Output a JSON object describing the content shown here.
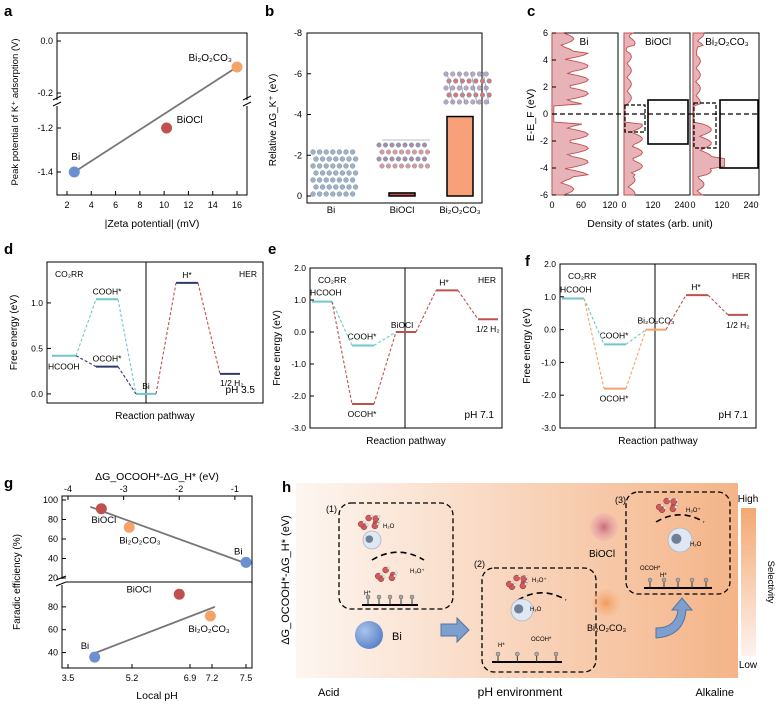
{
  "panels": {
    "a": {
      "letter": "a"
    },
    "b": {
      "letter": "b"
    },
    "c": {
      "letter": "c"
    },
    "d": {
      "letter": "d"
    },
    "e": {
      "letter": "e"
    },
    "f": {
      "letter": "f"
    },
    "g": {
      "letter": "g"
    },
    "h": {
      "letter": "h"
    }
  },
  "colors": {
    "bi": "#6b8fd0",
    "biocl": "#c0504d",
    "bi2o2co3": "#f5a36b",
    "fit": "#777777",
    "orange_bar": "#f7a07a",
    "teal": "#6fc7c9",
    "navy": "#2e3a6a",
    "red_dash": "#c0504d",
    "orange_dash": "#f5a36b",
    "grad_left": "#fdf6f1",
    "grad_right": "#f4b488"
  },
  "chart_data": [
    {
      "id": "a",
      "type": "scatter",
      "xlabel": "|Zeta potential| (mV)",
      "ylabel": "Peak potential of K⁺ adsorption (V)",
      "xticks": [
        "2",
        "4",
        "6",
        "8",
        "10",
        "12",
        "14",
        "16"
      ],
      "yticks_upper": [
        "0.0",
        "-0.2"
      ],
      "yticks_lower": [
        "-1.2",
        "-1.4"
      ],
      "points": [
        {
          "name": "Bi",
          "x": 2.6,
          "y": -1.4
        },
        {
          "name": "BiOCl",
          "x": 10.2,
          "y": -1.2
        },
        {
          "name": "Bi₂O₂CO₃",
          "x": 16.0,
          "y": -0.1
        }
      ]
    },
    {
      "id": "b",
      "type": "bar",
      "ylabel": "Relative ΔG_K⁺ (eV)",
      "categories": [
        "Bi",
        "BiOCl",
        "Bi₂O₂CO₃"
      ],
      "values": [
        0.0,
        -0.15,
        -3.9
      ],
      "yticks": [
        "-8",
        "-6",
        "-4",
        "-2",
        "0"
      ],
      "ylim": [
        0,
        -8
      ]
    },
    {
      "id": "c",
      "type": "area",
      "ylabel": "E-E_F (eV)",
      "xlabel": "Density of states (arb. unit)",
      "subplots": [
        {
          "name": "Bi",
          "xticks": [
            "0",
            "60",
            "120"
          ]
        },
        {
          "name": "BiOCl",
          "xticks": [
            "0",
            "120",
            "240"
          ]
        },
        {
          "name": "Bi₂O₂CO₃",
          "xticks": [
            "0",
            "120",
            "240"
          ]
        }
      ],
      "yticks": [
        "6",
        "4",
        "2",
        "0",
        "-2",
        "-4",
        "-6"
      ],
      "ylim": [
        -6,
        6
      ]
    },
    {
      "id": "d",
      "type": "line",
      "ylabel": "Free energy (eV)",
      "xlabel": "Reaction pathway",
      "ph": "pH 3.5",
      "yticks": [
        "0.0",
        "0.5",
        "1.0"
      ],
      "ylim": [
        -0.1,
        1.45
      ],
      "left_label": "CO₂RR",
      "right_label": "HER",
      "levels": [
        {
          "label": "COOH*",
          "value": 1.04,
          "color": "teal"
        },
        {
          "label": "OCOH*",
          "value": 0.3,
          "color": "navy"
        },
        {
          "label": "HCOOH",
          "value": 0.42,
          "color": "teal"
        },
        {
          "label": "Bi",
          "value": 0.0,
          "color": "navy"
        },
        {
          "label": "H*",
          "value": 1.22,
          "color": "navy"
        },
        {
          "label": "1/2 H₂",
          "value": 0.22,
          "color": "navy"
        }
      ]
    },
    {
      "id": "e",
      "type": "line",
      "ylabel": "Free energy (eV)",
      "xlabel": "Reaction pathway",
      "ph": "pH 7.1",
      "yticks": [
        "2.0",
        "1.0",
        "0.0",
        "-1.0",
        "-2.0",
        "-3.0"
      ],
      "ylim": [
        -3.0,
        2.0
      ],
      "left_label": "CO₂RR",
      "right_label": "HER",
      "levels": [
        {
          "label": "HCOOH",
          "value": 0.95
        },
        {
          "label": "COOH*",
          "value": -0.42
        },
        {
          "label": "OCOH*",
          "value": -2.25
        },
        {
          "label": "BiOCl",
          "value": 0.0
        },
        {
          "label": "H*",
          "value": 1.3
        },
        {
          "label": "1/2 H₂",
          "value": 0.4
        }
      ]
    },
    {
      "id": "f",
      "type": "line",
      "ylabel": "Free energy (eV)",
      "xlabel": "Reaction pathway",
      "ph": "pH 7.1",
      "yticks": [
        "2.0",
        "1.0",
        "0.0",
        "-1.0",
        "-2.0",
        "-3.0"
      ],
      "ylim": [
        -3.0,
        2.0
      ],
      "left_label": "CO₂RR",
      "right_label": "HER",
      "levels": [
        {
          "label": "HCOOH",
          "value": 0.95
        },
        {
          "label": "COOH*",
          "value": -0.45
        },
        {
          "label": "OCOH*",
          "value": -1.8
        },
        {
          "label": "Bi₂O₂CO₃",
          "value": 0.0
        },
        {
          "label": "H*",
          "value": 1.05
        },
        {
          "label": "1/2 H₂",
          "value": 0.45
        }
      ]
    },
    {
      "id": "g",
      "type": "scatter",
      "top_xlabel": "ΔG_OCOOH*-ΔG_H* (eV)",
      "xlabel": "Local pH",
      "ylabel": "Faradic efficiency (%)",
      "top_xticks": [
        "-4",
        "-3",
        "-2",
        "-1"
      ],
      "bottom_xticks": [
        "3.5",
        "5.2",
        "6.9",
        "7.2",
        "7.5"
      ],
      "yticks_top": [
        "100",
        "80",
        "60",
        "40",
        "20"
      ],
      "yticks_bottom": [
        "80",
        "60",
        "40"
      ],
      "top_points": [
        {
          "name": "BiOCl",
          "x": -3.4,
          "y": 91
        },
        {
          "name": "Bi₂O₂CO₃",
          "x": -2.9,
          "y": 72
        },
        {
          "name": "Bi",
          "x": -0.8,
          "y": 36
        }
      ],
      "bottom_points": [
        {
          "name": "Bi",
          "x": 4.1,
          "y": 36
        },
        {
          "name": "BiOCl",
          "x": 6.0,
          "y": 91
        },
        {
          "name": "Bi₂O₂CO₃",
          "x": 6.7,
          "y": 72
        }
      ]
    }
  ],
  "schematic": {
    "ylabel": "ΔG_OCOOH*-ΔG_H* (eV)",
    "x_left": "Acid",
    "x_center": "pH environment",
    "x_right": "Alkaline",
    "scale_high": "High",
    "scale_low": "Low",
    "scale_label": "Selectivity",
    "step1": "(1)",
    "step2": "(2)",
    "step3": "(3)",
    "label_bi": "Bi",
    "label_biocl": "BiOCl",
    "label_bi2o2co3": "Bi₂O₂CO₃",
    "h2o": "H₂O",
    "h3o": "H₃O⁺",
    "h_star": "H*",
    "ocoh_star": "OCOH*"
  }
}
